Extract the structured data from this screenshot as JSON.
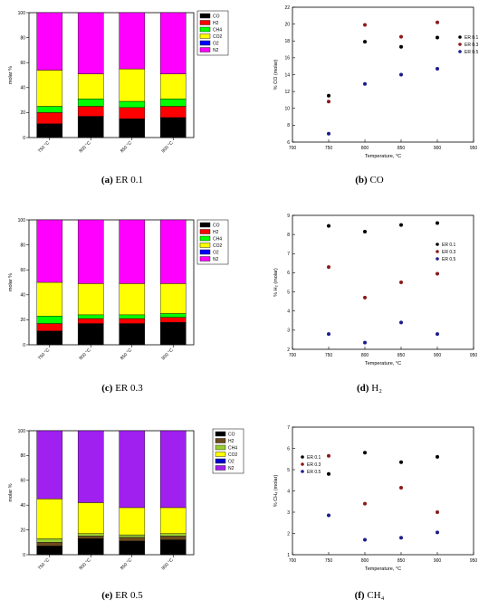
{
  "chart_data": [
    {
      "id": "a",
      "type": "bar",
      "stacked": true,
      "caption_letter": "(a)",
      "caption_text": "ER 0.1",
      "categories": [
        "750 °C",
        "800 °C",
        "850 °C",
        "900 °C"
      ],
      "ylabel": "molar %",
      "ylim": [
        0,
        100
      ],
      "yticks": [
        0,
        20,
        40,
        60,
        80,
        100
      ],
      "legend_position": "top-right",
      "series": [
        {
          "name": "CO",
          "color": "#000000",
          "values": [
            11,
            17,
            15,
            16
          ]
        },
        {
          "name": "H2",
          "color": "#ff0000",
          "values": [
            9,
            8,
            9,
            9
          ]
        },
        {
          "name": "CH4",
          "color": "#00ff00",
          "values": [
            5,
            6,
            5,
            6
          ]
        },
        {
          "name": "CO2",
          "color": "#ffff00",
          "values": [
            29,
            20,
            26,
            20
          ]
        },
        {
          "name": "O2",
          "color": "#0000ff",
          "values": [
            0,
            0,
            0,
            0
          ]
        },
        {
          "name": "N2",
          "color": "#ff00ff",
          "values": [
            46,
            49,
            45,
            49
          ]
        }
      ]
    },
    {
      "id": "b",
      "type": "scatter",
      "caption_letter": "(b)",
      "caption_text": "CO",
      "xlabel": "Temperature, °C",
      "ylabel": "% CO (molar)",
      "xlim": [
        700,
        950
      ],
      "ylim": [
        6,
        22
      ],
      "xticks": [
        700,
        750,
        800,
        850,
        900,
        950
      ],
      "yticks": [
        6,
        8,
        10,
        12,
        14,
        16,
        18,
        20,
        22
      ],
      "legend_position": "top-right",
      "series": [
        {
          "name": "ER 0.1",
          "color": "#000000",
          "x": [
            750,
            800,
            850,
            900
          ],
          "y": [
            11.5,
            17.9,
            17.3,
            18.4
          ]
        },
        {
          "name": "ER 0.3",
          "color": "#8b1a1a",
          "x": [
            750,
            800,
            850,
            900
          ],
          "y": [
            10.8,
            19.9,
            18.5,
            20.2
          ]
        },
        {
          "name": "ER 0.5",
          "color": "#1c1c8c",
          "x": [
            750,
            800,
            850,
            900
          ],
          "y": [
            7.0,
            12.9,
            14.0,
            14.7
          ]
        }
      ]
    },
    {
      "id": "c",
      "type": "bar",
      "stacked": true,
      "caption_letter": "(c)",
      "caption_text": "ER 0.3",
      "categories": [
        "750 °C",
        "800 °C",
        "850 °C",
        "900 °C"
      ],
      "ylabel": "molar %",
      "ylim": [
        0,
        100
      ],
      "yticks": [
        0,
        20,
        40,
        60,
        80,
        100
      ],
      "legend_position": "right",
      "series": [
        {
          "name": "CO",
          "color": "#000000",
          "values": [
            11,
            17,
            17,
            18
          ]
        },
        {
          "name": "H2",
          "color": "#ff0000",
          "values": [
            6,
            4,
            4,
            4
          ]
        },
        {
          "name": "CH4",
          "color": "#00ff00",
          "values": [
            6,
            3,
            3,
            3
          ]
        },
        {
          "name": "CO2",
          "color": "#ffff00",
          "values": [
            27,
            25,
            25,
            24
          ]
        },
        {
          "name": "O2",
          "color": "#0000ff",
          "values": [
            0,
            0,
            0,
            0
          ]
        },
        {
          "name": "N2",
          "color": "#ff00ff",
          "values": [
            50,
            51,
            51,
            51
          ]
        }
      ]
    },
    {
      "id": "d",
      "type": "scatter",
      "caption_letter": "(d)",
      "caption_text": "H₂",
      "xlabel": "Temperature, °C",
      "ylabel": "% H₂ (molar)",
      "xlim": [
        700,
        950
      ],
      "ylim": [
        2,
        9
      ],
      "xticks": [
        700,
        750,
        800,
        850,
        900,
        950
      ],
      "yticks": [
        2,
        3,
        4,
        5,
        6,
        7,
        8,
        9
      ],
      "legend_position": "right",
      "series": [
        {
          "name": "ER 0.1",
          "color": "#000000",
          "x": [
            750,
            800,
            850,
            900
          ],
          "y": [
            8.45,
            8.15,
            8.5,
            8.6
          ]
        },
        {
          "name": "ER 0.3",
          "color": "#8b1a1a",
          "x": [
            750,
            800,
            850,
            900
          ],
          "y": [
            6.3,
            4.7,
            5.5,
            5.95
          ]
        },
        {
          "name": "ER 0.5",
          "color": "#1c1c8c",
          "x": [
            750,
            800,
            850,
            900
          ],
          "y": [
            2.8,
            2.35,
            3.4,
            2.8
          ]
        }
      ]
    },
    {
      "id": "e",
      "type": "bar",
      "stacked": true,
      "caption_letter": "(e)",
      "caption_text": "ER 0.5",
      "categories": [
        "750 °C",
        "800 °C",
        "850 °C",
        "900 °C"
      ],
      "ylabel": "molar %",
      "ylim": [
        0,
        100
      ],
      "yticks": [
        0,
        20,
        40,
        60,
        80,
        100
      ],
      "legend_position": "top-right",
      "series": [
        {
          "name": "CO",
          "color": "#000000",
          "values": [
            7,
            13,
            11,
            12
          ]
        },
        {
          "name": "H2",
          "color": "#6b4a1c",
          "values": [
            3,
            2,
            3,
            3
          ]
        },
        {
          "name": "CH4",
          "color": "#9acd32",
          "values": [
            3,
            2,
            2,
            2
          ]
        },
        {
          "name": "CO2",
          "color": "#ffff00",
          "values": [
            32,
            25,
            22,
            21
          ]
        },
        {
          "name": "O2",
          "color": "#0000cc",
          "values": [
            0,
            0,
            0,
            0
          ]
        },
        {
          "name": "N2",
          "color": "#a020f0",
          "values": [
            55,
            58,
            62,
            62
          ]
        }
      ]
    },
    {
      "id": "f",
      "type": "scatter",
      "caption_letter": "(f)",
      "caption_text": "CH₄",
      "xlabel": "Temperature, °C",
      "ylabel": "% CH₄ (molar)",
      "xlim": [
        700,
        950
      ],
      "ylim": [
        1,
        7
      ],
      "xticks": [
        700,
        750,
        800,
        850,
        900,
        950
      ],
      "yticks": [
        1,
        2,
        3,
        4,
        5,
        6,
        7
      ],
      "legend_position": "top-left",
      "series": [
        {
          "name": "ER 0.1",
          "color": "#000000",
          "x": [
            750,
            800,
            850,
            900
          ],
          "y": [
            4.8,
            5.8,
            5.35,
            5.6
          ]
        },
        {
          "name": "ER 0.3",
          "color": "#8b1a1a",
          "x": [
            750,
            800,
            850,
            900
          ],
          "y": [
            5.65,
            3.4,
            4.15,
            3.0
          ]
        },
        {
          "name": "ER 0.5",
          "color": "#1c1c8c",
          "x": [
            750,
            800,
            850,
            900
          ],
          "y": [
            2.85,
            1.7,
            1.8,
            2.05
          ]
        }
      ]
    }
  ]
}
